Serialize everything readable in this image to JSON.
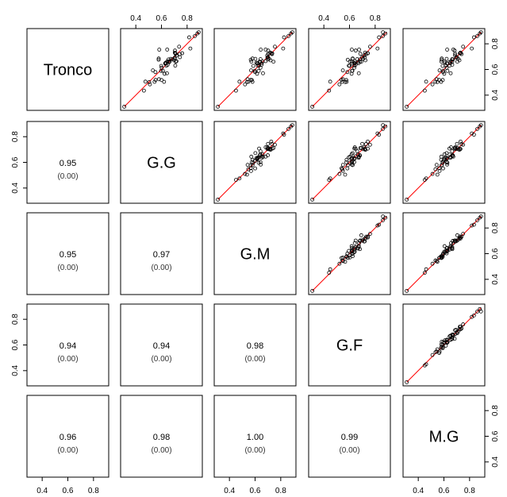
{
  "chart_data": {
    "type": "scatter_matrix",
    "variables": [
      "Tronco",
      "G.G",
      "G.M",
      "G.F",
      "M.G"
    ],
    "axis_range": [
      0.3,
      0.9
    ],
    "tick_values": [
      0.4,
      0.6,
      0.8
    ],
    "tick_labels": [
      "0.4",
      "0.6",
      "0.8"
    ],
    "lower_panels": [
      {
        "row": 1,
        "col": 0,
        "correlation": "0.95",
        "p_value": "(0.00)"
      },
      {
        "row": 2,
        "col": 0,
        "correlation": "0.95",
        "p_value": "(0.00)"
      },
      {
        "row": 2,
        "col": 1,
        "correlation": "0.97",
        "p_value": "(0.00)"
      },
      {
        "row": 3,
        "col": 0,
        "correlation": "0.94",
        "p_value": "(0.00)"
      },
      {
        "row": 3,
        "col": 1,
        "correlation": "0.94",
        "p_value": "(0.00)"
      },
      {
        "row": 3,
        "col": 2,
        "correlation": "0.98",
        "p_value": "(0.00)"
      },
      {
        "row": 4,
        "col": 0,
        "correlation": "0.96",
        "p_value": "(0.00)"
      },
      {
        "row": 4,
        "col": 1,
        "correlation": "0.98",
        "p_value": "(0.00)"
      },
      {
        "row": 4,
        "col": 2,
        "correlation": "1.00",
        "p_value": "(0.00)"
      },
      {
        "row": 4,
        "col": 3,
        "correlation": "0.99",
        "p_value": "(0.00)"
      }
    ],
    "upper_panels": "scatter of row variable vs column variable with red fitted line",
    "point_color": "#000000",
    "fit_line_color": "#ff0000",
    "grid": false
  }
}
